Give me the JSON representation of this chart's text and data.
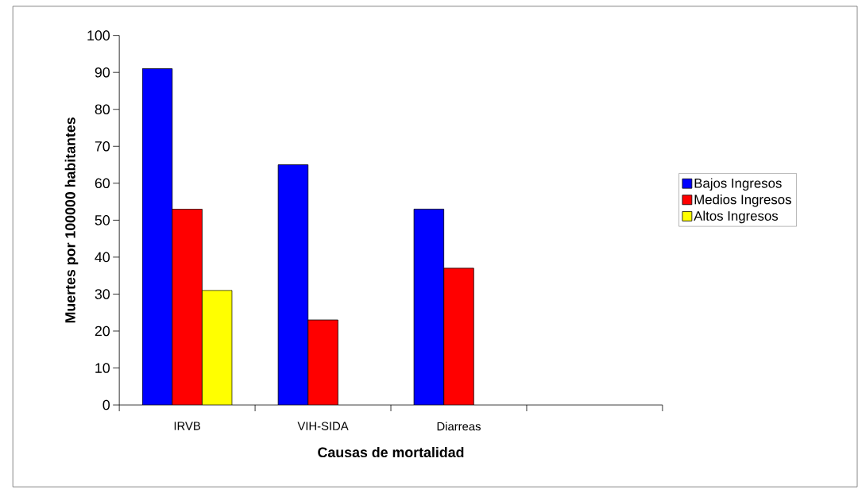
{
  "chart_data": {
    "type": "bar",
    "xlabel": "Causas de mortalidad",
    "ylabel": "Muertes por 100000 habitantes",
    "categories": [
      "IRVB",
      "VIH-SIDA",
      "Diarreas",
      null
    ],
    "series": [
      {
        "name": "Bajos Ingresos",
        "color": "#0000ff",
        "values": [
          91,
          65,
          53,
          null
        ]
      },
      {
        "name": "Medios Ingresos",
        "color": "#ff0000",
        "values": [
          53,
          23,
          37,
          null
        ]
      },
      {
        "name": "Altos Ingresos",
        "color": "#ffff00",
        "values": [
          31,
          null,
          null,
          null
        ]
      }
    ],
    "ylim": [
      0,
      100
    ],
    "yticks": [
      0,
      10,
      20,
      30,
      40,
      50,
      60,
      70,
      80,
      90,
      100
    ],
    "legend": "right"
  }
}
